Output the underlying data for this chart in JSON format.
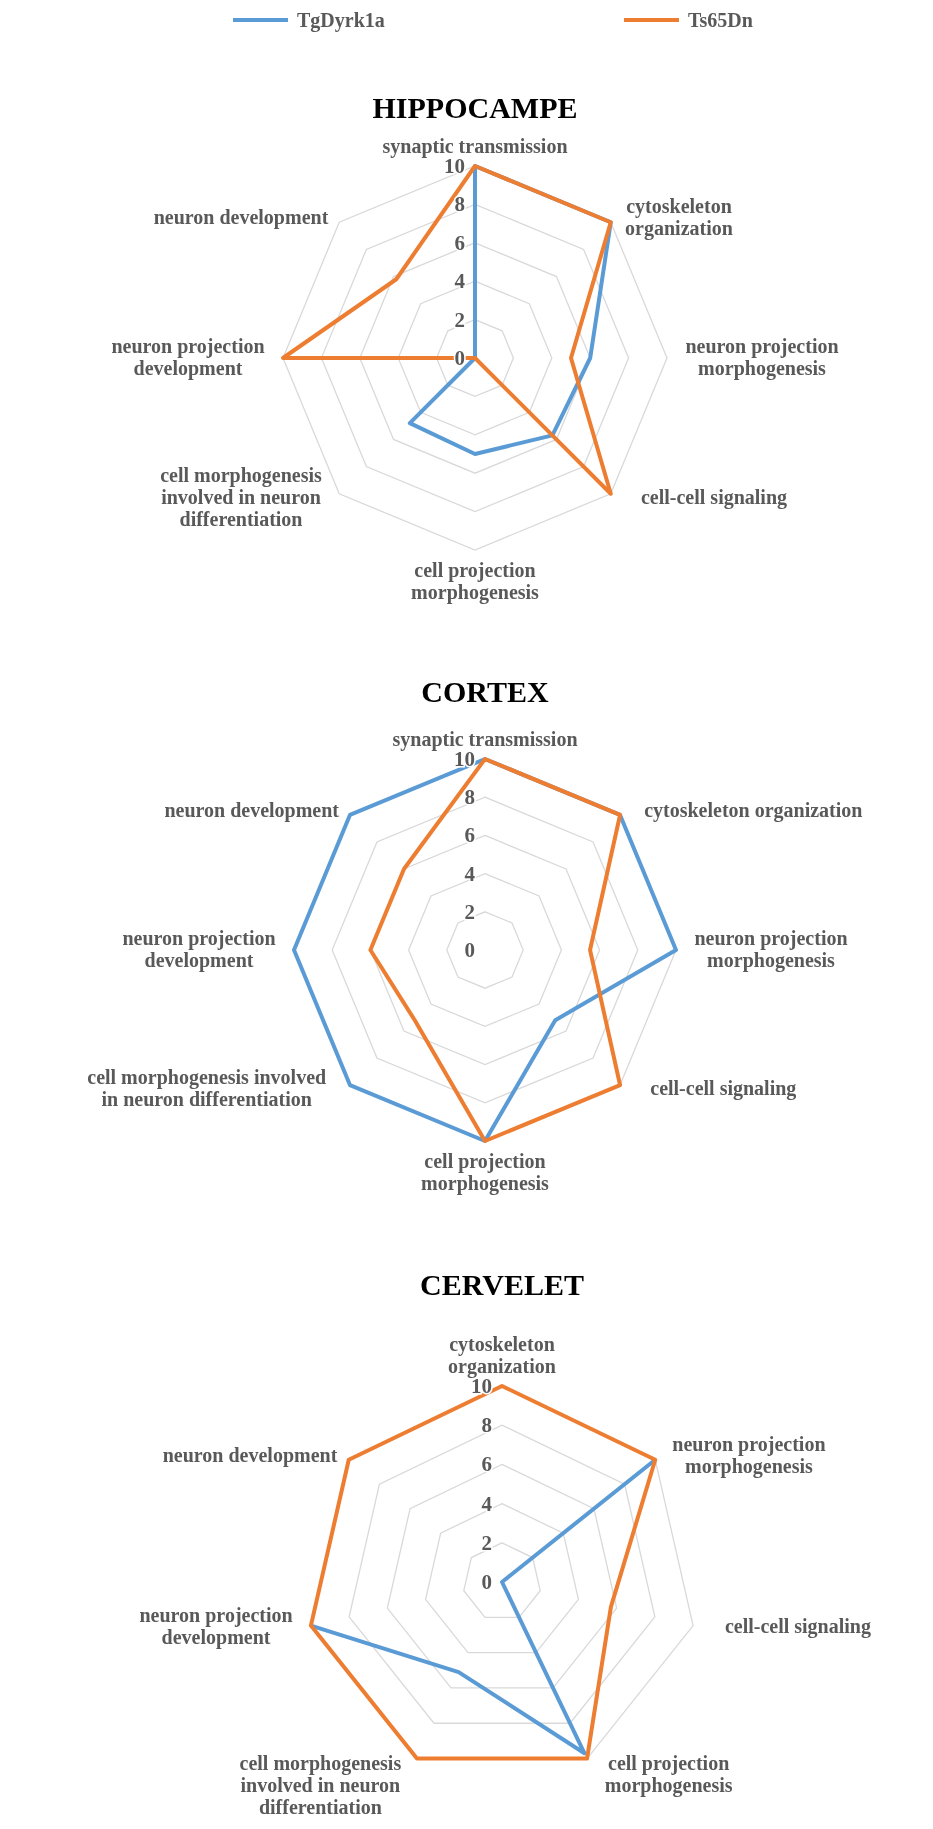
{
  "chart_data": [
    {
      "type": "radar",
      "title": "HIPPOCAMPE",
      "legend": "top",
      "grid": true,
      "ylim": [
        0,
        10
      ],
      "yticks": [
        0,
        2,
        4,
        6,
        8,
        10
      ],
      "categories": [
        "synaptic transmission",
        "cytoskeleton\norganization",
        "neuron projection\nmorphogenesis",
        "cell-cell signaling",
        "cell projection\nmorphogenesis",
        "cell morphogenesis\ninvolved in neuron\ndifferentiation",
        "neuron projection\ndevelopment",
        "neuron development"
      ],
      "series": [
        {
          "name": "TgDyrk1a",
          "color": "#5b9bd5",
          "values": [
            10,
            10,
            6,
            5.7,
            5,
            4.8,
            0,
            0
          ]
        },
        {
          "name": "Ts65Dn",
          "color": "#ed7d31",
          "values": [
            10,
            10,
            5,
            10,
            0,
            0,
            10,
            5.8
          ]
        }
      ]
    },
    {
      "type": "radar",
      "title": "CORTEX",
      "grid": true,
      "ylim": [
        0,
        10
      ],
      "yticks": [
        0,
        2,
        4,
        6,
        8,
        10
      ],
      "categories": [
        "synaptic transmission",
        "cytoskeleton organization",
        "neuron projection\nmorphogenesis",
        "cell-cell signaling",
        "cell projection\nmorphogenesis",
        "cell morphogenesis involved\nin neuron differentiation",
        "neuron projection\ndevelopment",
        "neuron development"
      ],
      "series": [
        {
          "color": "#5b9bd5",
          "values": [
            10,
            10,
            10,
            5.2,
            10,
            10,
            10,
            10
          ]
        },
        {
          "color": "#ed7d31",
          "values": [
            10,
            10,
            5.5,
            10,
            10,
            5.2,
            6,
            6
          ]
        }
      ]
    },
    {
      "type": "radar",
      "title": "CERVELET",
      "grid": true,
      "ylim": [
        0,
        10
      ],
      "yticks": [
        0,
        2,
        4,
        6,
        8,
        10
      ],
      "categories": [
        "cytoskeleton\norganization",
        "neuron projection\nmorphogenesis",
        "cell-cell signaling",
        "cell projection\nmorphogenesis",
        "cell morphogenesis\ninvolved in neuron\ndifferentiation",
        "neuron projection\ndevelopment",
        "neuron development"
      ],
      "series": [
        {
          "color": "#5b9bd5",
          "values": [
            null,
            10,
            0,
            9.7,
            5.1,
            10,
            null
          ]
        },
        {
          "color": "#ed7d31",
          "values": [
            10,
            10,
            5.7,
            10,
            10,
            10,
            10
          ]
        }
      ]
    }
  ]
}
